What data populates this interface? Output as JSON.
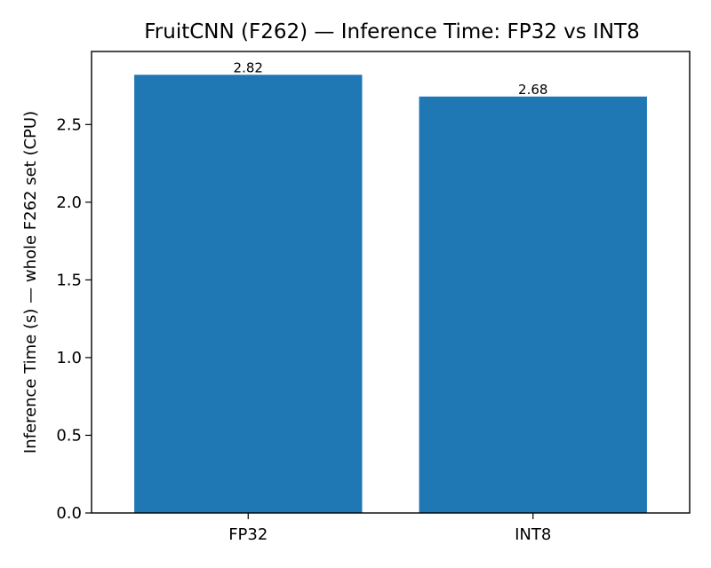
{
  "chart_data": {
    "type": "bar",
    "title": "FruitCNN (F262) — Inference Time: FP32 vs INT8",
    "xlabel": "",
    "ylabel": "Inference Time (s) — whole F262 set (CPU)",
    "categories": [
      "FP32",
      "INT8"
    ],
    "values": [
      2.82,
      2.68
    ],
    "data_labels": [
      "2.82",
      "2.68"
    ],
    "ylim": [
      0,
      2.97
    ],
    "yticks": [
      0.0,
      0.5,
      1.0,
      1.5,
      2.0,
      2.5
    ],
    "ytick_labels": [
      "0.0",
      "0.5",
      "1.0",
      "1.5",
      "2.0",
      "2.5"
    ],
    "bar_color": "#1f77b4",
    "grid": false,
    "legend": "none"
  }
}
